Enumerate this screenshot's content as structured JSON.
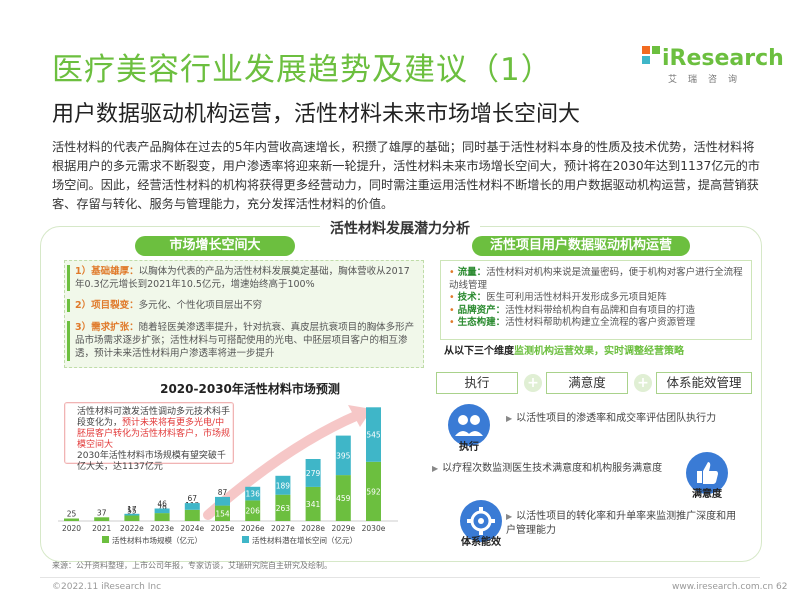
{
  "header": {
    "title": "医疗美容行业发展趋势及建议（1）",
    "subtitle": "用户数据驱动机构运营，活性材料未来市场增长空间大",
    "logo_word": "iResearch",
    "logo_tag": "艾瑞咨询"
  },
  "intro": "活性材料的代表产品胸体在过去的5年内营收高速增长，积攒了雄厚的基础；同时基于活性材料本身的性质及技术优势，活性材料将根据用户的多元需求不断裂变，用户渗透率将迎来新一轮提升，活性材料未来市场增长空间大，预计将在2030年达到1137亿元的市场空间。因此，经营活性材料的机构将获得更多经营动力，同时需注重运用活性材料不断增长的用户数据驱动机构运营，提高营销获客、存留与转化、服务与管理能力，充分发挥活性材料的价值。",
  "frame_title": "活性材料发展潜力分析",
  "left": {
    "pill": "市场增长空间大",
    "items": [
      {
        "head": "1）基础雄厚：",
        "text": "以胸体为代表的产品为活性材料发展奠定基础，胸体营收从2017年0.3亿元增长到2021年10.5亿元，增速始终高于100%"
      },
      {
        "head": "2）项目裂变：",
        "text": "多元化、个性化项目层出不穷"
      },
      {
        "head": "3）需求扩张：",
        "text": "随着轻医美渗透率提升，针对抗衰、真皮层抗衰项目的胸体多形产品市场需求逐步扩张；活性材料与可搭配使用的光电、中胚层项目客户的相互渗透，预计未来活性材料用户渗透率将进一步提升"
      }
    ],
    "chart_title": "2020-2030年活性材料市场预测",
    "callout": {
      "line1": "活性材料可激发活性调动多元技术科手段",
      "line2": "变化为，",
      "red": "预计未来将有更多光电/中胚层客户转化为活性材料客户，市场规模空间大",
      "line3": "2030年活性材料市场规模有望突破千亿大关，达1137亿元"
    }
  },
  "chart_data": {
    "type": "bar",
    "categories": [
      "2020",
      "2021",
      "2022e",
      "2023e",
      "2024e",
      "2025e",
      "2026e",
      "2027e",
      "2028e",
      "2029e",
      "2030e"
    ],
    "series": [
      {
        "name": "活性材料市场规模（亿元）",
        "color": "#6cbf3f",
        "values": [
          25,
          37,
          55,
          79,
          112,
          154,
          206,
          263,
          341,
          459,
          592
        ]
      },
      {
        "name": "活性材料潜在增长空间（亿元）",
        "color": "#3fb6c8",
        "values": [
          0,
          0,
          17,
          46,
          67,
          87,
          136,
          189,
          279,
          395,
          545
        ]
      }
    ],
    "ylim": [
      0,
      1200
    ]
  },
  "right": {
    "pill": "活性项目用户数据驱动机构运营",
    "items": [
      {
        "k": "流量：",
        "t": "活性材料对机构来说是流量密码，便于机构对客户进行全流程动线管理"
      },
      {
        "k": "技术：",
        "t": "医生可利用活性材料开发形成多元项目矩阵"
      },
      {
        "k": "品牌资产：",
        "t": "活性材料带给机构自有品牌和自有项目的打造"
      },
      {
        "k": "生态构建：",
        "t": "活性材料帮助机构建立全流程的客户资源管理"
      }
    ],
    "note_prefix": "从以下三个维度",
    "note_highlight": "监测机构运营效果，实时调整经营策略",
    "tabs": [
      "执行",
      "满意度",
      "体系能效管理"
    ],
    "plus": "+",
    "dims": [
      {
        "label": "执行",
        "text": "以活性项目的渗透率和成交率评估团队执行力"
      },
      {
        "label": "满意度",
        "text": "以疗程次数监测医生技术满意度和机构服务满意度"
      },
      {
        "label": "体系能效",
        "text": "以活性项目的转化率和升单率来监测推广深度和用户管理能力"
      }
    ]
  },
  "footer": {
    "source": "来源：公开资料整理，上市公司年报，专家访谈，艾瑞研究院自主研究及绘制。",
    "copyright": "©2022.11 iResearch Inc",
    "site": "www.iresearch.com.cn",
    "page": "62"
  }
}
